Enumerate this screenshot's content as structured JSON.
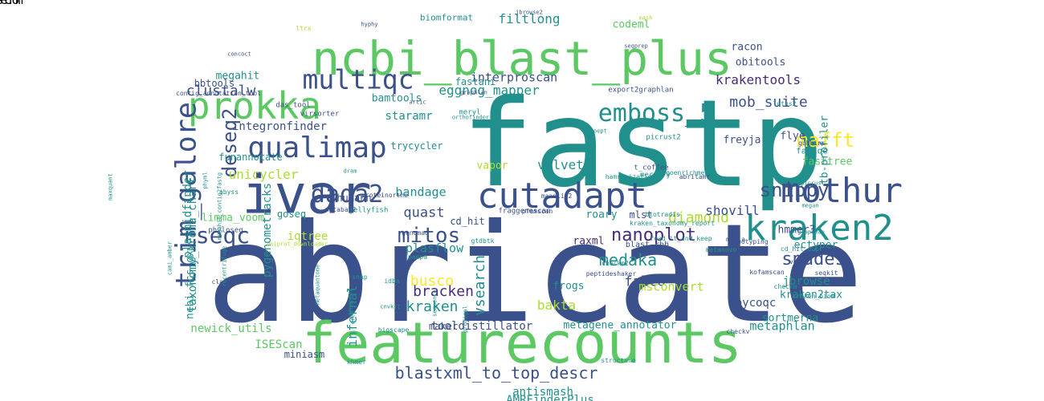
{
  "palette": {
    "purple": "#472c7a",
    "indigo": "#3b518b",
    "blue": "#2c718e",
    "teal": "#21908d",
    "green": "#27ad81",
    "lime": "#5cc863",
    "yellow": "#aadc32",
    "gold": "#fde725",
    "background": "#ffffff"
  },
  "words": [
    {
      "text": "abricate"
    },
    {
      "text": "fastp"
    },
    {
      "text": "featurecounts"
    },
    {
      "text": "ncbi_blast_plus"
    },
    {
      "text": "ivar"
    },
    {
      "text": "prokka"
    },
    {
      "text": "cutadapt"
    },
    {
      "text": "qualimap"
    },
    {
      "text": "kraken2"
    },
    {
      "text": "mothur"
    },
    {
      "text": "multiqc"
    },
    {
      "text": "dada2"
    },
    {
      "text": "trim_galore"
    },
    {
      "text": "emboss_5"
    },
    {
      "text": "mitos"
    },
    {
      "text": "rseqc"
    },
    {
      "text": "snippy"
    },
    {
      "text": "blastxml_to_top_descr"
    },
    {
      "text": "deseq2"
    },
    {
      "text": "nanoplot"
    },
    {
      "text": "spades"
    },
    {
      "text": "mafft"
    },
    {
      "text": "medaka"
    },
    {
      "text": "krakentools"
    },
    {
      "text": "mob_suite"
    },
    {
      "text": "diamond"
    },
    {
      "text": "busco"
    },
    {
      "text": "bracken"
    },
    {
      "text": "eggnog_mapper"
    },
    {
      "text": "quast"
    },
    {
      "text": "falco"
    },
    {
      "text": "kraken"
    },
    {
      "text": "filtlong"
    },
    {
      "text": "bandage"
    },
    {
      "text": "bakta"
    },
    {
      "text": "metaphlan"
    },
    {
      "text": "interproscan"
    },
    {
      "text": "clustalw"
    },
    {
      "text": "shovill"
    },
    {
      "text": "antismash"
    },
    {
      "text": "unicycler"
    },
    {
      "text": "plasflow"
    },
    {
      "text": "velvet"
    },
    {
      "text": "integronfinder"
    },
    {
      "text": "pycoqc"
    },
    {
      "text": "tooldistillator"
    },
    {
      "text": "msconvert"
    },
    {
      "text": "kraken2tax"
    },
    {
      "text": "jbrowse"
    },
    {
      "text": "ISEScan"
    },
    {
      "text": "AMRFinderPlus"
    },
    {
      "text": "newick_utils"
    },
    {
      "text": "staramr"
    },
    {
      "text": "codeml"
    },
    {
      "text": "bamtools"
    },
    {
      "text": "racon"
    },
    {
      "text": "obitools"
    },
    {
      "text": "flye"
    },
    {
      "text": "sortmerna"
    },
    {
      "text": "metagene_annotator"
    },
    {
      "text": "hmmer3"
    },
    {
      "text": "roary"
    },
    {
      "text": "ectyper"
    },
    {
      "text": "fasttree"
    },
    {
      "text": "megahit"
    },
    {
      "text": "bbtools"
    },
    {
      "text": "fastani"
    },
    {
      "text": "vapor"
    },
    {
      "text": "humann"
    },
    {
      "text": "limma_voom"
    },
    {
      "text": "maker"
    },
    {
      "text": "miniasm"
    },
    {
      "text": "iqtree"
    },
    {
      "text": "goseq"
    },
    {
      "text": "frogs"
    },
    {
      "text": "raxml"
    },
    {
      "text": "infernal"
    },
    {
      "text": "vsearch"
    },
    {
      "text": "pygenometracks"
    },
    {
      "text": "plasmidfinder"
    },
    {
      "text": "taxonomy_krona_chart"
    },
    {
      "text": "ncbi_fcs_gx"
    },
    {
      "text": "tb-profiler"
    },
    {
      "text": "funannotate"
    },
    {
      "text": "trycycler"
    },
    {
      "text": "mlst"
    },
    {
      "text": "freyja"
    },
    {
      "text": "fastqe"
    },
    {
      "text": "biomformat"
    },
    {
      "text": "cd_hit"
    },
    {
      "text": "blast_rbh"
    },
    {
      "text": "contig_annotation_tool"
    },
    {
      "text": "virsorter"
    },
    {
      "text": "das_tool"
    },
    {
      "text": "graphlan"
    },
    {
      "text": "meryl"
    },
    {
      "text": "export2graphlan"
    },
    {
      "text": "lotus2"
    },
    {
      "text": "gubbins"
    },
    {
      "text": "picrust2"
    },
    {
      "text": "t_coffee"
    },
    {
      "text": "mercury"
    },
    {
      "text": "goenrichment"
    },
    {
      "text": "abritamr"
    },
    {
      "text": "hamronization"
    },
    {
      "text": "proteinortho"
    },
    {
      "text": "maaslin2"
    },
    {
      "text": "jellyfish"
    },
    {
      "text": "fraggenescan"
    },
    {
      "text": "pfamscan"
    },
    {
      "text": "biotradis"
    },
    {
      "text": "kraken_taxonomy_report"
    },
    {
      "text": "read_it_and_keep"
    },
    {
      "text": "minia"
    },
    {
      "text": "metanovo"
    },
    {
      "text": "phyloseq"
    },
    {
      "text": "metabat2"
    },
    {
      "text": "genomad"
    },
    {
      "text": "gtdbtk"
    },
    {
      "text": "spotyping"
    },
    {
      "text": "cd_hit_dup"
    },
    {
      "text": "vegan"
    },
    {
      "text": "kofamscan"
    },
    {
      "text": "checkm"
    },
    {
      "text": "kraken_biom"
    },
    {
      "text": "checkv"
    },
    {
      "text": "checkm2"
    },
    {
      "text": "peptideshaker"
    },
    {
      "text": "snap"
    },
    {
      "text": "idba"
    },
    {
      "text": "clair3"
    },
    {
      "text": "pampa"
    },
    {
      "text": "bigscape"
    },
    {
      "text": "khmer"
    },
    {
      "text": "structure"
    },
    {
      "text": "hyphy"
    },
    {
      "text": "ltrx"
    },
    {
      "text": "concoct"
    },
    {
      "text": "jbrowse2"
    },
    {
      "text": "mash"
    },
    {
      "text": "seqkit"
    },
    {
      "text": "picrust"
    },
    {
      "text": "megan"
    },
    {
      "text": "seqprep"
    },
    {
      "text": "abyss"
    },
    {
      "text": "cami_amber"
    },
    {
      "text": "maxquant"
    },
    {
      "text": "uniprot_downloader"
    },
    {
      "text": "metaquantome"
    },
    {
      "text": "sequence"
    },
    {
      "text": "prodigal"
    },
    {
      "text": "miniprot"
    },
    {
      "text": "recentrifuge"
    },
    {
      "text": "dram"
    },
    {
      "text": "orthofinder"
    },
    {
      "text": "unipept"
    },
    {
      "text": "artic"
    },
    {
      "text": "phyml"
    },
    {
      "text": "megahit_contig2fastg"
    },
    {
      "text": "graphmap"
    },
    {
      "text": "cnvkit"
    },
    {
      "text": "drep"
    },
    {
      "text": "disco"
    },
    {
      "text": "coverm"
    }
  ]
}
